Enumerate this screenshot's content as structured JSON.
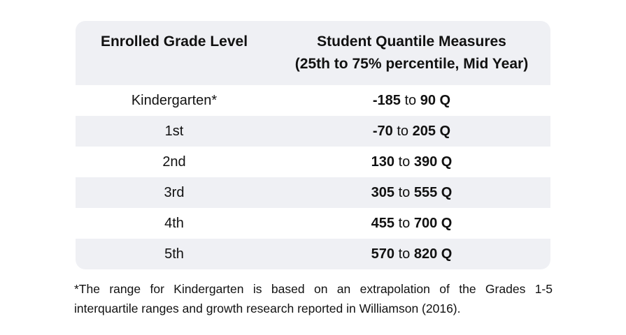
{
  "table": {
    "header": {
      "grade_label": "Enrolled Grade Level",
      "quantile_line1": "Student Quantile Measures",
      "quantile_line2": "(25th to 75% percentile, Mid Year)"
    },
    "rows": [
      {
        "grade": "Kindergarten*",
        "low": "-185",
        "connector": "to",
        "high": "90 Q"
      },
      {
        "grade": "1st",
        "low": "-70",
        "connector": "to",
        "high": "205 Q"
      },
      {
        "grade": "2nd",
        "low": "130",
        "connector": "to",
        "high": "390 Q"
      },
      {
        "grade": "3rd",
        "low": "305",
        "connector": "to",
        "high": "555 Q"
      },
      {
        "grade": "4th",
        "low": "455",
        "connector": "to",
        "high": "700 Q"
      },
      {
        "grade": "5th",
        "low": "570",
        "connector": "to",
        "high": "820 Q"
      }
    ]
  },
  "footnote": {
    "line1": "*The range for Kindergarten is based on an extrapolation of the Grades 1-5",
    "line2": "interquartile ranges and growth research reported in Williamson (2016)."
  },
  "colors": {
    "stripe": "#eff0f4",
    "text": "#111111",
    "page_bg": "#ffffff"
  },
  "chart_data": {
    "type": "table",
    "title": "",
    "columns": [
      "Enrolled Grade Level",
      "Student Quantile Measures (25th to 75% percentile, Mid Year)"
    ],
    "rows": [
      [
        "Kindergarten*",
        "-185 to 90 Q"
      ],
      [
        "1st",
        "-70 to 205 Q"
      ],
      [
        "2nd",
        "130 to 390 Q"
      ],
      [
        "3rd",
        "305 to 555 Q"
      ],
      [
        "4th",
        "455 to 700 Q"
      ],
      [
        "5th",
        "570 to 820 Q"
      ]
    ],
    "footnote": "*The range for Kindergarten is based on an extrapolation of the Grades 1-5 interquartile ranges and growth research reported in Williamson (2016)."
  }
}
